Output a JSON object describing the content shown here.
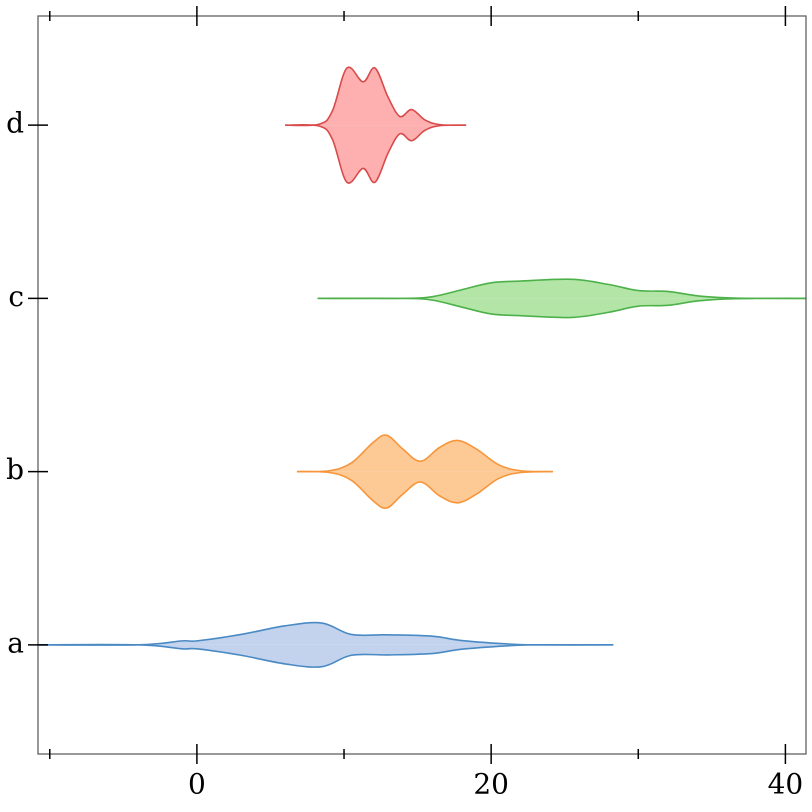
{
  "chart_data": {
    "type": "violin",
    "orientation": "horizontal",
    "categories": [
      "a",
      "b",
      "c",
      "d"
    ],
    "violins": [
      {
        "color": "#c3d3ee",
        "stroke": "#4a8ac4",
        "x": [
          -11.5,
          -4,
          -1,
          0,
          3,
          6,
          8.5,
          10.5,
          13,
          16,
          18,
          21,
          23,
          28.3
        ],
        "width": [
          0,
          0,
          0.023,
          0.023,
          0.06,
          0.11,
          0.126,
          0.06,
          0.058,
          0.05,
          0.025,
          0.006,
          0,
          0
        ]
      },
      {
        "color": "#fdca96",
        "stroke": "#f7953a",
        "x": [
          6.8,
          9,
          10.5,
          12,
          12.9,
          14,
          15.2,
          16.5,
          17.7,
          19,
          20.5,
          22,
          24.2
        ],
        "width": [
          0,
          0.005,
          0.05,
          0.17,
          0.21,
          0.13,
          0.06,
          0.14,
          0.18,
          0.13,
          0.04,
          0.005,
          0
        ]
      },
      {
        "color": "#b3e6a6",
        "stroke": "#4db14a",
        "x": [
          8.2,
          14,
          16,
          18,
          20,
          22,
          25.5,
          28,
          30,
          32,
          34,
          36,
          38,
          42.5
        ],
        "width": [
          0,
          0,
          0.01,
          0.05,
          0.09,
          0.1,
          0.11,
          0.08,
          0.045,
          0.04,
          0.015,
          0.003,
          0,
          0
        ]
      },
      {
        "color": "#feb0b0",
        "stroke": "#d94a4a",
        "x": [
          6,
          8.3,
          9.2,
          10.2,
          11.3,
          12.1,
          13,
          13.8,
          14.6,
          15.5,
          16.5,
          18.3
        ],
        "width": [
          0,
          0.005,
          0.08,
          0.33,
          0.25,
          0.33,
          0.16,
          0.05,
          0.09,
          0.03,
          0.003,
          0
        ]
      }
    ],
    "xlim": [
      -10.8,
      41.4
    ],
    "xticks": [
      0,
      20,
      40
    ],
    "xminor": [
      -10,
      10,
      30
    ],
    "ylim": [
      -0.63,
      3.63
    ]
  }
}
